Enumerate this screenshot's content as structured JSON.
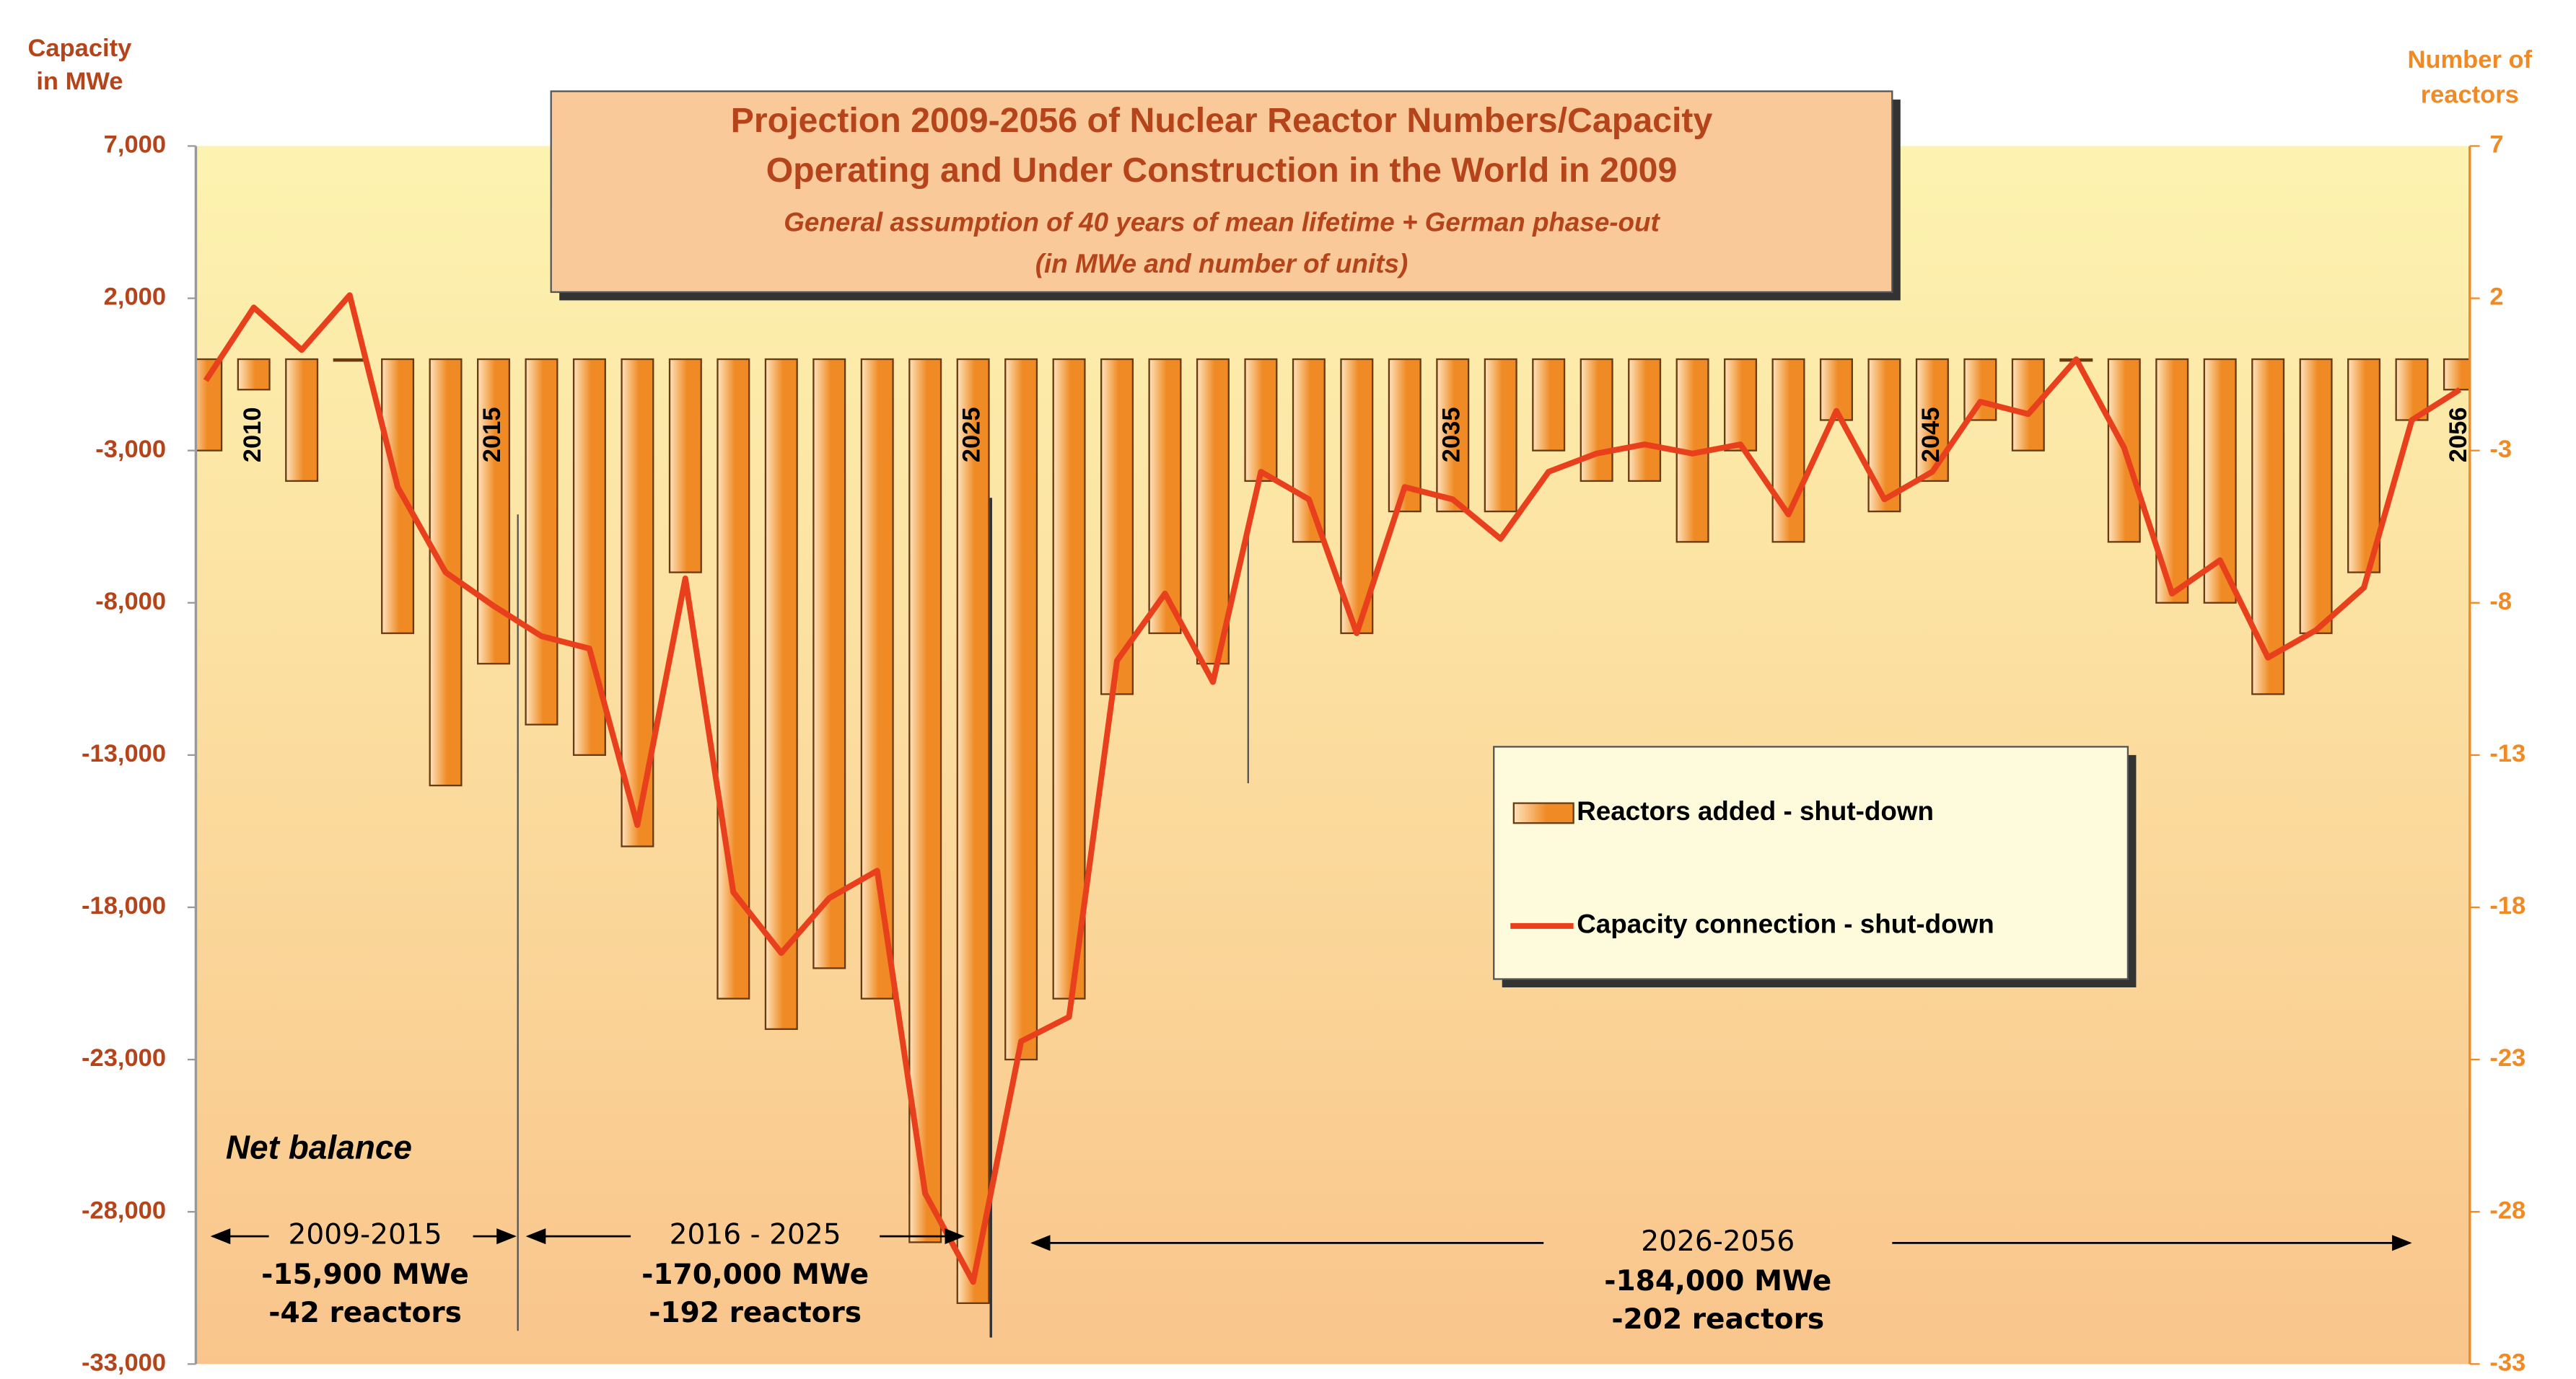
{
  "chart_data": {
    "type": "combo",
    "title": [
      "Projection 2009-2056 of Nuclear Reactor Numbers/Capacity",
      "Operating and Under Construction in the World in 2009"
    ],
    "subtitle": [
      "General assumption of 40 years of mean lifetime + German phase-out",
      "(in MWe and number of units)"
    ],
    "y_label": [
      "Capacity",
      "in MWe"
    ],
    "y2_label": [
      "Number of",
      "reactors"
    ],
    "categories": [
      null,
      "2010",
      null,
      null,
      null,
      null,
      "2015",
      null,
      null,
      null,
      null,
      null,
      null,
      null,
      null,
      null,
      "2025",
      null,
      null,
      null,
      null,
      null,
      null,
      null,
      null,
      null,
      "2035",
      null,
      null,
      null,
      null,
      null,
      null,
      null,
      null,
      null,
      "2045",
      null,
      null,
      null,
      null,
      null,
      null,
      null,
      null,
      null,
      null,
      "2056"
    ],
    "series": [
      {
        "name": "Reactors added - shut-down",
        "type": "bar",
        "axis": "y2",
        "color": "#f08a24",
        "values": [
          -3,
          -1,
          -4,
          0,
          -9,
          -14,
          -10,
          -12,
          -13,
          -16,
          -7,
          -21,
          -22,
          -20,
          -21,
          -29,
          -31,
          -23,
          -21,
          -11,
          -9,
          -10,
          -4,
          -6,
          -9,
          -5,
          -5,
          -5,
          -3,
          -4,
          -4,
          -6,
          -3,
          -6,
          -2,
          -5,
          -4,
          -2,
          -3,
          0,
          -6,
          -8,
          -8,
          -11,
          -9,
          -7,
          -2,
          -1
        ]
      },
      {
        "name": "Capacity connection - shut-down",
        "type": "line",
        "axis": "y",
        "color": "#e8401c",
        "values": [
          -700,
          1700,
          300,
          2100,
          -4200,
          -7000,
          -8100,
          -9100,
          -9500,
          -15300,
          -7200,
          -17500,
          -19500,
          -17700,
          -16800,
          -27400,
          -30300,
          -22400,
          -21600,
          -9900,
          -7700,
          -10600,
          -3700,
          -4600,
          -9000,
          -4200,
          -4600,
          -5900,
          -3700,
          -3100,
          -2800,
          -3100,
          -2800,
          -5100,
          -1700,
          -4600,
          -3700,
          -1400,
          -1800,
          0,
          -2900,
          -7700,
          -6600,
          -9800,
          -8900,
          -7500,
          -2000,
          -1000
        ]
      }
    ],
    "ylim": [
      -33000,
      7000
    ],
    "yticks": [
      {
        "value": 7000,
        "label": "7,000"
      },
      {
        "value": 2000,
        "label": "2,000"
      },
      {
        "value": -3000,
        "label": "-3,000"
      },
      {
        "value": -8000,
        "label": "-8,000"
      },
      {
        "value": -13000,
        "label": "-13,000"
      },
      {
        "value": -18000,
        "label": "-18,000"
      },
      {
        "value": -23000,
        "label": "-23,000"
      },
      {
        "value": -28000,
        "label": "-28,000"
      },
      {
        "value": -33000,
        "label": "-33,000"
      }
    ],
    "y2lim": [
      -33,
      7
    ],
    "y2ticks": [
      7,
      2,
      -3,
      -8,
      -13,
      -18,
      -23,
      -28,
      -33
    ],
    "annotations": [
      "Net balance"
    ],
    "periods": [
      {
        "range": "2009-2015",
        "capacity": "-15,900 MWe",
        "reactors": "-42 reactors"
      },
      {
        "range": "2016 - 2025",
        "capacity": "-170,000 MWe",
        "reactors": "-192 reactors"
      },
      {
        "range": "2026-2056",
        "capacity": "-184,000 MWe",
        "reactors": "-202 reactors"
      }
    ]
  }
}
